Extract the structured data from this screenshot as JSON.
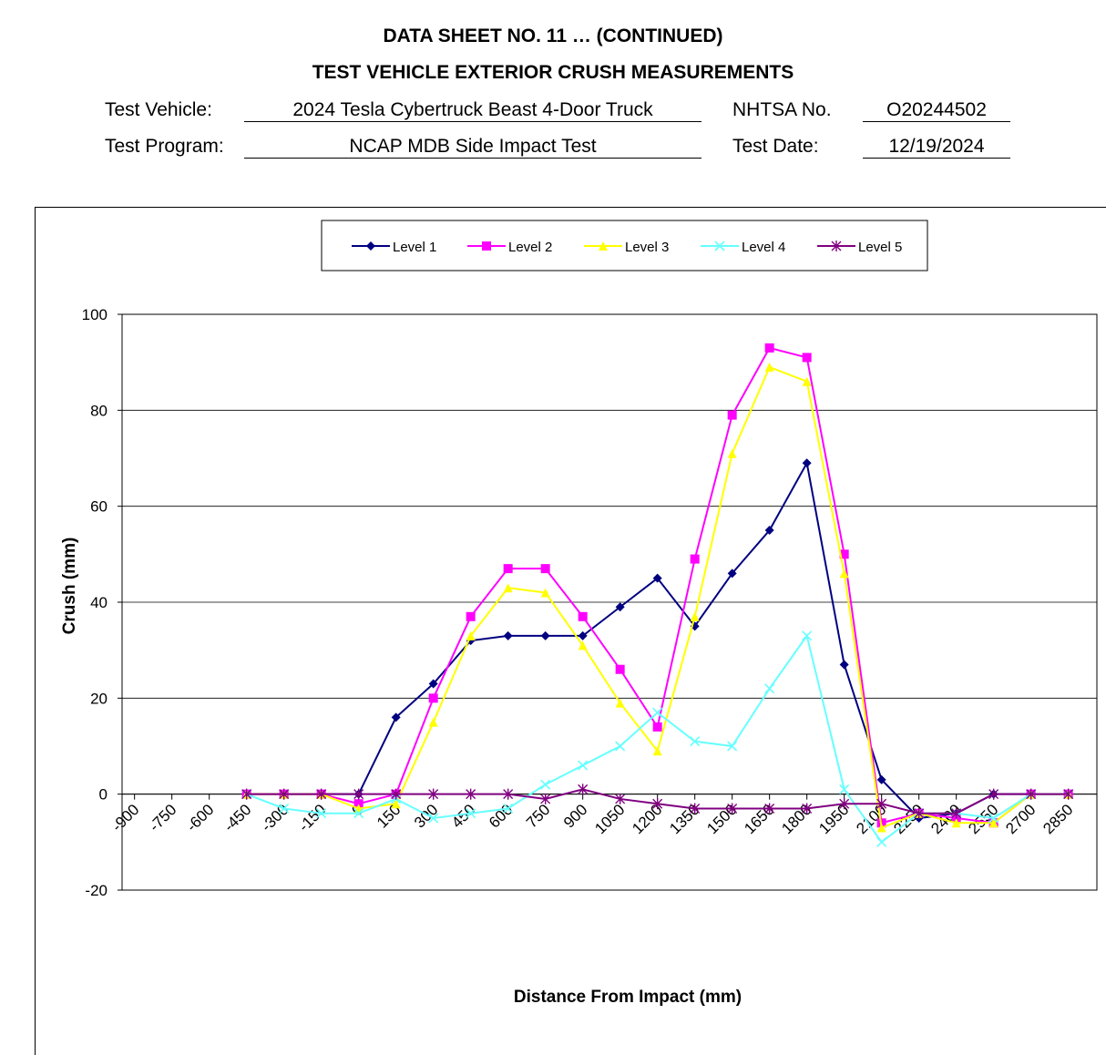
{
  "header": {
    "title_line1": "DATA SHEET NO. 11 … (CONTINUED)",
    "title_line2": "TEST VEHICLE EXTERIOR CRUSH MEASUREMENTS",
    "vehicle_label": "Test Vehicle:",
    "vehicle_value": "2024 Tesla Cybertruck Beast 4-Door Truck",
    "nhtsa_label": "NHTSA No.",
    "nhtsa_value": "O20244502",
    "program_label": "Test Program:",
    "program_value": "NCAP MDB Side Impact Test",
    "date_label": "Test Date:",
    "date_value": "12/19/2024"
  },
  "chart_data": {
    "type": "line",
    "xlabel": "Distance From Impact (mm)",
    "ylabel": "Crush (mm)",
    "ylim": [
      -20,
      100
    ],
    "yticks": [
      -20,
      0,
      20,
      40,
      60,
      80,
      100
    ],
    "xticks": [
      -900,
      -750,
      -600,
      -450,
      -300,
      -150,
      0,
      150,
      300,
      450,
      600,
      750,
      900,
      1050,
      1200,
      1350,
      1500,
      1650,
      1800,
      1950,
      2100,
      2250,
      2400,
      2550,
      2700,
      2850
    ],
    "grid": "horizontal",
    "legend": "top",
    "x": [
      -450,
      -300,
      -150,
      0,
      150,
      300,
      450,
      600,
      750,
      900,
      1050,
      1200,
      1350,
      1500,
      1650,
      1800,
      1950,
      2100,
      2250,
      2400,
      2550,
      2700,
      2850
    ],
    "series": [
      {
        "name": "Level 1",
        "color": "#000080",
        "marker": "diamond",
        "values": [
          0,
          0,
          0,
          0,
          16,
          23,
          32,
          33,
          33,
          33,
          39,
          45,
          35,
          46,
          55,
          69,
          27,
          3,
          -5,
          -4,
          0,
          0,
          0
        ]
      },
      {
        "name": "Level 2",
        "color": "#FF00FF",
        "marker": "square",
        "values": [
          0,
          0,
          0,
          -2,
          0,
          20,
          37,
          47,
          47,
          37,
          26,
          14,
          49,
          79,
          93,
          91,
          50,
          -6,
          -4,
          -5,
          -6,
          0,
          0
        ]
      },
      {
        "name": "Level 3",
        "color": "#FFFF00",
        "marker": "triangle",
        "values": [
          0,
          0,
          0,
          -3,
          -2,
          15,
          33,
          43,
          42,
          31,
          19,
          9,
          37,
          71,
          89,
          86,
          46,
          -7,
          -4,
          -6,
          -6,
          0,
          0
        ]
      },
      {
        "name": "Level 4",
        "color": "#66FFFF",
        "marker": "x",
        "values": [
          0,
          -3,
          -4,
          -4,
          -1,
          -5,
          -4,
          -3,
          2,
          6,
          10,
          17,
          11,
          10,
          22,
          33,
          1,
          -10,
          -4,
          -4,
          -5,
          0,
          0
        ]
      },
      {
        "name": "Level 5",
        "color": "#800080",
        "marker": "star",
        "values": [
          0,
          0,
          0,
          0,
          0,
          0,
          0,
          0,
          -1,
          1,
          -1,
          -2,
          -3,
          -3,
          -3,
          -3,
          -2,
          -2,
          -4,
          -4,
          0,
          0,
          0
        ]
      }
    ]
  }
}
